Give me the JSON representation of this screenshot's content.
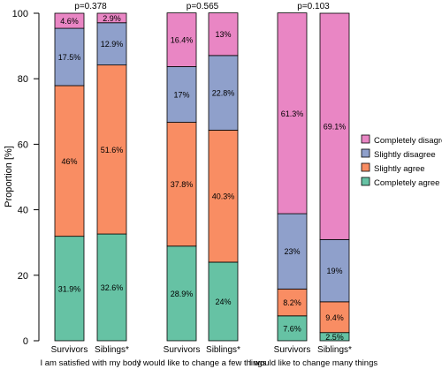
{
  "chart_data": {
    "type": "bar",
    "stacked": true,
    "orientation": "vertical",
    "ylabel": "Proportion [%]",
    "ylim": [
      0,
      100
    ],
    "yticks": [
      "0",
      "20",
      "40",
      "60",
      "80",
      "100"
    ],
    "grid": false,
    "legend_placement": "right",
    "legend": [
      {
        "name": "Completely disagree",
        "color": "#E986C4"
      },
      {
        "name": "Slightly disagree",
        "color": "#8FA0CB"
      },
      {
        "name": "Slightly agree",
        "color": "#F98D63"
      },
      {
        "name": "Completely agree",
        "color": "#66C2A4"
      }
    ],
    "groups": [
      {
        "label": "I am satisfied with my body",
        "pvalue": "p=0.378",
        "bars": [
          {
            "label": "Survivors",
            "values": [
              31.9,
              46,
              17.5,
              4.6
            ],
            "labels": [
              "31.9%",
              "46%",
              "17.5%",
              "4.6%"
            ]
          },
          {
            "label": "Siblings*",
            "values": [
              32.6,
              51.6,
              12.9,
              2.9
            ],
            "labels": [
              "32.6%",
              "51.6%",
              "12.9%",
              "2.9%"
            ]
          }
        ]
      },
      {
        "label": "I would like to change a few things",
        "pvalue": "p=0.565",
        "bars": [
          {
            "label": "Survivors",
            "values": [
              28.9,
              37.8,
              17,
              16.4
            ],
            "labels": [
              "28.9%",
              "37.8%",
              "17%",
              "16.4%"
            ]
          },
          {
            "label": "Siblings*",
            "values": [
              24,
              40.3,
              22.8,
              13
            ],
            "labels": [
              "24%",
              "40.3%",
              "22.8%",
              "13%"
            ]
          }
        ]
      },
      {
        "label": "I would like to change many things",
        "pvalue": "p=0.103",
        "bars": [
          {
            "label": "Survivors",
            "values": [
              7.6,
              8.2,
              23,
              61.3
            ],
            "labels": [
              "7.6%",
              "8.2%",
              "23%",
              "61.3%"
            ]
          },
          {
            "label": "Siblings*",
            "values": [
              2.5,
              9.4,
              19,
              69.1
            ],
            "labels": [
              "2.5%",
              "9.4%",
              "19%",
              "69.1%"
            ]
          }
        ]
      }
    ],
    "stack_order": [
      "Completely agree",
      "Slightly agree",
      "Slightly disagree",
      "Completely disagree"
    ],
    "stack_colors": [
      "#66C2A4",
      "#F98D63",
      "#8FA0CB",
      "#E986C4"
    ]
  }
}
